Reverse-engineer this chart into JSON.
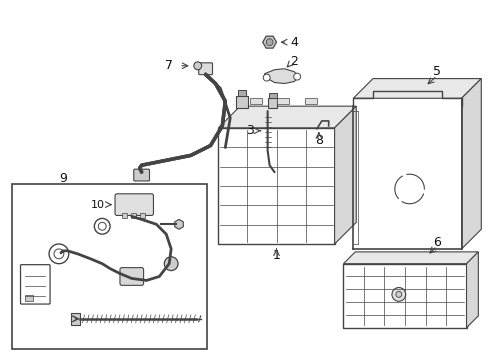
{
  "bg_color": "#ffffff",
  "line_color": "#444444",
  "label_color": "#111111",
  "fig_width": 4.9,
  "fig_height": 3.6,
  "dpi": 100
}
